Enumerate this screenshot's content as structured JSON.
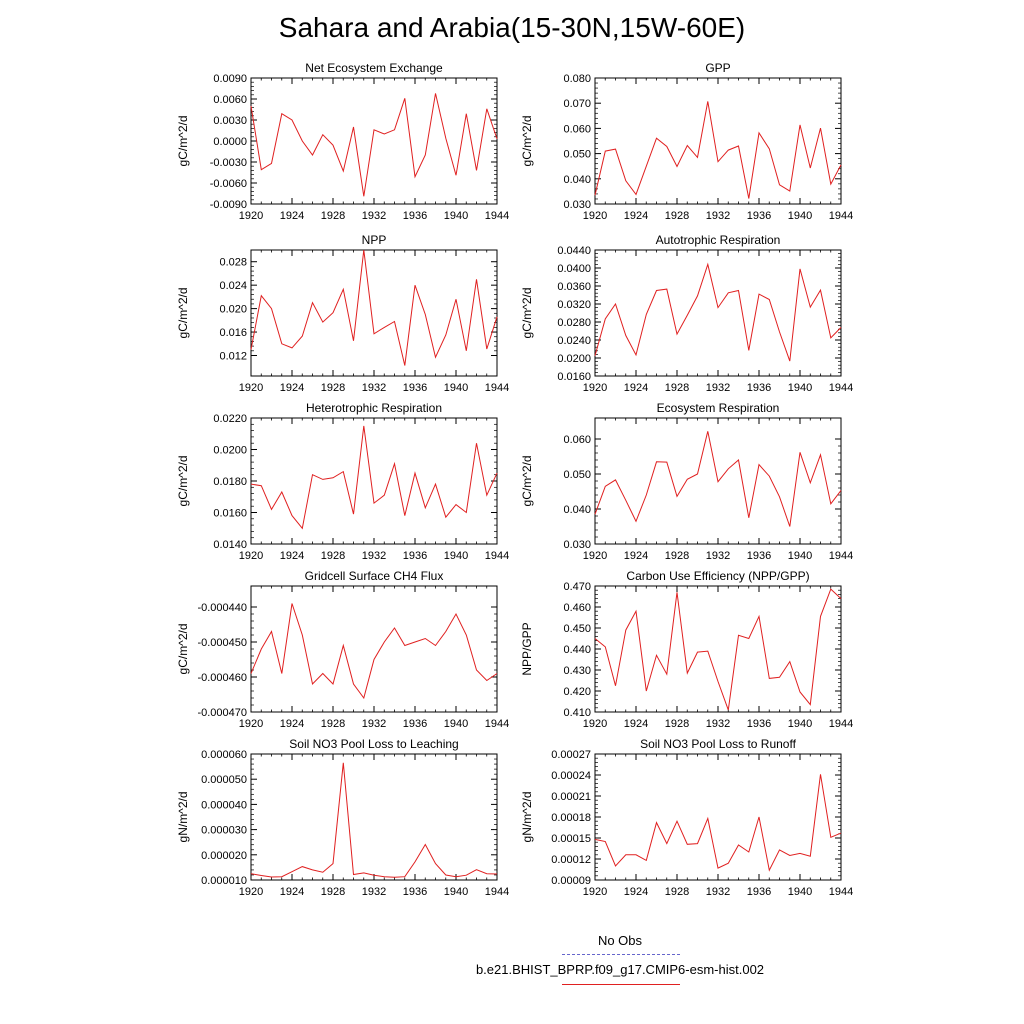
{
  "title": "Sahara and Arabia(15-30N,15W-60E)",
  "legend": {
    "items": [
      {
        "label": "No Obs",
        "color": "#6666cc",
        "dash": true
      },
      {
        "label": "b.e21.BHIST_BPRP.f09_g17.CMIP6-esm-hist.002",
        "color": "#e02020",
        "dash": false
      }
    ]
  },
  "line_color": "#e02020",
  "chart_data": [
    {
      "type": "line",
      "title": "Net Ecosystem Exchange",
      "ylabel": "gC/m^2/d",
      "x": [
        1920,
        1921,
        1922,
        1923,
        1924,
        1925,
        1926,
        1927,
        1928,
        1929,
        1930,
        1931,
        1932,
        1933,
        1934,
        1935,
        1936,
        1937,
        1938,
        1939,
        1940,
        1941,
        1942,
        1943,
        1944
      ],
      "y": [
        0.005,
        -0.0041,
        -0.0032,
        0.0039,
        0.003,
        0.0,
        -0.002,
        0.0009,
        -0.0006,
        -0.0043,
        0.002,
        -0.0079,
        0.0016,
        0.001,
        0.0016,
        0.0061,
        -0.0051,
        -0.002,
        0.0068,
        0.0004,
        -0.0049,
        0.0039,
        -0.0042,
        0.0046,
        0.0003
      ],
      "xlim": [
        1920,
        1944
      ],
      "ylim": [
        -0.009,
        0.009
      ],
      "xticks": [
        1920,
        1924,
        1928,
        1932,
        1936,
        1940,
        1944
      ],
      "yticks": [
        "0.0090",
        "0.0060",
        "0.0030",
        "0.0000",
        "-0.0030",
        "-0.0060",
        "-0.0090"
      ],
      "ytick_values": [
        0.009,
        0.006,
        0.003,
        0.0,
        -0.003,
        -0.006,
        -0.009
      ]
    },
    {
      "type": "line",
      "title": "GPP",
      "ylabel": "gC/m^2/d",
      "x": [
        1920,
        1921,
        1922,
        1923,
        1924,
        1925,
        1926,
        1927,
        1928,
        1929,
        1930,
        1931,
        1932,
        1933,
        1934,
        1935,
        1936,
        1937,
        1938,
        1939,
        1940,
        1941,
        1942,
        1943,
        1944
      ],
      "y": [
        0.0335,
        0.051,
        0.0518,
        0.0392,
        0.0338,
        0.045,
        0.0561,
        0.0528,
        0.0449,
        0.0532,
        0.0485,
        0.0707,
        0.0468,
        0.0514,
        0.053,
        0.0322,
        0.0582,
        0.0519,
        0.0376,
        0.0351,
        0.0614,
        0.0443,
        0.0601,
        0.0379,
        0.0455
      ],
      "xlim": [
        1920,
        1944
      ],
      "ylim": [
        0.03,
        0.08
      ],
      "xticks": [
        1920,
        1924,
        1928,
        1932,
        1936,
        1940,
        1944
      ],
      "yticks": [
        "0.080",
        "0.070",
        "0.060",
        "0.050",
        "0.040",
        "0.030"
      ],
      "ytick_values": [
        0.08,
        0.07,
        0.06,
        0.05,
        0.04,
        0.03
      ]
    },
    {
      "type": "line",
      "title": "NPP",
      "ylabel": "gC/m^2/d",
      "x": [
        1920,
        1921,
        1922,
        1923,
        1924,
        1925,
        1926,
        1927,
        1928,
        1929,
        1930,
        1931,
        1932,
        1933,
        1934,
        1935,
        1936,
        1937,
        1938,
        1939,
        1940,
        1941,
        1942,
        1943,
        1944
      ],
      "y": [
        0.013,
        0.0222,
        0.02,
        0.014,
        0.0133,
        0.0153,
        0.021,
        0.0177,
        0.0193,
        0.0233,
        0.0145,
        0.03,
        0.0157,
        0.0168,
        0.0178,
        0.0103,
        0.024,
        0.019,
        0.0117,
        0.0155,
        0.0216,
        0.0128,
        0.025,
        0.0131,
        0.0186
      ],
      "xlim": [
        1920,
        1944
      ],
      "ylim": [
        0.0085,
        0.03
      ],
      "xticks": [
        1920,
        1924,
        1928,
        1932,
        1936,
        1940,
        1944
      ],
      "yticks": [
        "0.028",
        "0.024",
        "0.020",
        "0.016",
        "0.012"
      ],
      "ytick_values": [
        0.028,
        0.024,
        0.02,
        0.016,
        0.012
      ]
    },
    {
      "type": "line",
      "title": "Autotrophic Respiration",
      "ylabel": "gC/m^2/d",
      "x": [
        1920,
        1921,
        1922,
        1923,
        1924,
        1925,
        1926,
        1927,
        1928,
        1929,
        1930,
        1931,
        1932,
        1933,
        1934,
        1935,
        1936,
        1937,
        1938,
        1939,
        1940,
        1941,
        1942,
        1943,
        1944
      ],
      "y": [
        0.0205,
        0.0287,
        0.032,
        0.025,
        0.0207,
        0.0297,
        0.035,
        0.0353,
        0.0253,
        0.0295,
        0.0338,
        0.0408,
        0.0312,
        0.0345,
        0.035,
        0.0217,
        0.0342,
        0.033,
        0.0258,
        0.0193,
        0.0398,
        0.0313,
        0.0351,
        0.0245,
        0.0268
      ],
      "xlim": [
        1920,
        1944
      ],
      "ylim": [
        0.016,
        0.044
      ],
      "xticks": [
        1920,
        1924,
        1928,
        1932,
        1936,
        1940,
        1944
      ],
      "yticks": [
        "0.0440",
        "0.0400",
        "0.0360",
        "0.0320",
        "0.0280",
        "0.0240",
        "0.0200",
        "0.0160"
      ],
      "ytick_values": [
        0.044,
        0.04,
        0.036,
        0.032,
        0.028,
        0.024,
        0.02,
        0.016
      ]
    },
    {
      "type": "line",
      "title": "Heterotrophic Respiration",
      "ylabel": "gC/m^2/d",
      "x": [
        1920,
        1921,
        1922,
        1923,
        1924,
        1925,
        1926,
        1927,
        1928,
        1929,
        1930,
        1931,
        1932,
        1933,
        1934,
        1935,
        1936,
        1937,
        1938,
        1939,
        1940,
        1941,
        1942,
        1943,
        1944
      ],
      "y": [
        0.0178,
        0.0177,
        0.0162,
        0.0173,
        0.0158,
        0.015,
        0.0184,
        0.0181,
        0.0182,
        0.0186,
        0.0159,
        0.0215,
        0.0166,
        0.0171,
        0.0191,
        0.0158,
        0.0185,
        0.0163,
        0.0178,
        0.0157,
        0.0165,
        0.016,
        0.0204,
        0.0171,
        0.0185
      ],
      "xlim": [
        1920,
        1944
      ],
      "ylim": [
        0.014,
        0.022
      ],
      "xticks": [
        1920,
        1924,
        1928,
        1932,
        1936,
        1940,
        1944
      ],
      "yticks": [
        "0.0220",
        "0.0200",
        "0.0180",
        "0.0160",
        "0.0140"
      ],
      "ytick_values": [
        0.022,
        0.02,
        0.018,
        0.016,
        0.014
      ]
    },
    {
      "type": "line",
      "title": "Ecosystem Respiration",
      "ylabel": "gC/m^2/d",
      "x": [
        1920,
        1921,
        1922,
        1923,
        1924,
        1925,
        1926,
        1927,
        1928,
        1929,
        1930,
        1931,
        1932,
        1933,
        1934,
        1935,
        1936,
        1937,
        1938,
        1939,
        1940,
        1941,
        1942,
        1943,
        1944
      ],
      "y": [
        0.0385,
        0.0465,
        0.0483,
        0.0425,
        0.0365,
        0.044,
        0.0535,
        0.0534,
        0.0436,
        0.0485,
        0.05,
        0.0622,
        0.0478,
        0.0515,
        0.054,
        0.0375,
        0.0527,
        0.0494,
        0.0435,
        0.035,
        0.0562,
        0.0475,
        0.0555,
        0.0415,
        0.0453
      ],
      "xlim": [
        1920,
        1944
      ],
      "ylim": [
        0.03,
        0.066
      ],
      "xticks": [
        1920,
        1924,
        1928,
        1932,
        1936,
        1940,
        1944
      ],
      "yticks": [
        "0.060",
        "0.050",
        "0.040",
        "0.030"
      ],
      "ytick_values": [
        0.06,
        0.05,
        0.04,
        0.03
      ]
    },
    {
      "type": "line",
      "title": "Gridcell Surface CH4 Flux",
      "ylabel": "gC/m^2/d",
      "x": [
        1920,
        1921,
        1922,
        1923,
        1924,
        1925,
        1926,
        1927,
        1928,
        1929,
        1930,
        1931,
        1932,
        1933,
        1934,
        1935,
        1936,
        1937,
        1938,
        1939,
        1940,
        1941,
        1942,
        1943,
        1944
      ],
      "y": [
        -0.000459,
        -0.000452,
        -0.000447,
        -0.000459,
        -0.000439,
        -0.000448,
        -0.000462,
        -0.000459,
        -0.000462,
        -0.000451,
        -0.000462,
        -0.000466,
        -0.000455,
        -0.00045,
        -0.000446,
        -0.000451,
        -0.00045,
        -0.000449,
        -0.000451,
        -0.000447,
        -0.000442,
        -0.000448,
        -0.000458,
        -0.000461,
        -0.000459
      ],
      "xlim": [
        1920,
        1944
      ],
      "ylim": [
        -0.00047,
        -0.000434
      ],
      "xticks": [
        1920,
        1924,
        1928,
        1932,
        1936,
        1940,
        1944
      ],
      "yticks": [
        "-0.000440",
        "-0.000450",
        "-0.000460",
        "-0.000470"
      ],
      "ytick_values": [
        -0.00044,
        -0.00045,
        -0.00046,
        -0.00047
      ]
    },
    {
      "type": "line",
      "title": "Carbon Use Efficiency (NPP/GPP)",
      "ylabel": "NPP/GPP",
      "x": [
        1920,
        1921,
        1922,
        1923,
        1924,
        1925,
        1926,
        1927,
        1928,
        1929,
        1930,
        1931,
        1932,
        1933,
        1934,
        1935,
        1936,
        1937,
        1938,
        1939,
        1940,
        1941,
        1942,
        1943,
        1944
      ],
      "y": [
        0.445,
        0.441,
        0.4225,
        0.449,
        0.458,
        0.42,
        0.437,
        0.428,
        0.467,
        0.4285,
        0.4385,
        0.439,
        0.4245,
        0.411,
        0.4465,
        0.445,
        0.4555,
        0.426,
        0.4265,
        0.434,
        0.4195,
        0.4135,
        0.4555,
        0.4685,
        0.464
      ],
      "xlim": [
        1920,
        1944
      ],
      "ylim": [
        0.41,
        0.47
      ],
      "xticks": [
        1920,
        1924,
        1928,
        1932,
        1936,
        1940,
        1944
      ],
      "yticks": [
        "0.470",
        "0.460",
        "0.450",
        "0.440",
        "0.430",
        "0.420",
        "0.410"
      ],
      "ytick_values": [
        0.47,
        0.46,
        0.45,
        0.44,
        0.43,
        0.42,
        0.41
      ]
    },
    {
      "type": "line",
      "title": "Soil NO3 Pool Loss to Leaching",
      "ylabel": "gN/m^2/d",
      "x": [
        1920,
        1921,
        1922,
        1923,
        1924,
        1925,
        1926,
        1927,
        1928,
        1929,
        1930,
        1931,
        1932,
        1933,
        1934,
        1935,
        1936,
        1937,
        1938,
        1939,
        1940,
        1941,
        1942,
        1943,
        1944
      ],
      "y": [
        1.25e-05,
        1.18e-05,
        1.12e-05,
        1.13e-05,
        1.33e-05,
        1.53e-05,
        1.4e-05,
        1.31e-05,
        1.65e-05,
        5.65e-05,
        1.22e-05,
        1.28e-05,
        1.19e-05,
        1.13e-05,
        1.11e-05,
        1.13e-05,
        1.72e-05,
        2.41e-05,
        1.65e-05,
        1.2e-05,
        1.13e-05,
        1.19e-05,
        1.41e-05,
        1.25e-05,
        1.24e-05
      ],
      "xlim": [
        1920,
        1944
      ],
      "ylim": [
        1e-05,
        6e-05
      ],
      "xticks": [
        1920,
        1924,
        1928,
        1932,
        1936,
        1940,
        1944
      ],
      "yticks": [
        "0.000060",
        "0.000050",
        "0.000040",
        "0.000030",
        "0.000020",
        "0.000010"
      ],
      "ytick_values": [
        6e-05,
        5e-05,
        4e-05,
        3e-05,
        2e-05,
        1e-05
      ]
    },
    {
      "type": "line",
      "title": "Soil NO3 Pool Loss to Runoff",
      "ylabel": "gN/m^2/d",
      "x": [
        1920,
        1921,
        1922,
        1923,
        1924,
        1925,
        1926,
        1927,
        1928,
        1929,
        1930,
        1931,
        1932,
        1933,
        1934,
        1935,
        1936,
        1937,
        1938,
        1939,
        1940,
        1941,
        1942,
        1943,
        1944
      ],
      "y": [
        0.000148,
        0.000145,
        0.00011,
        0.000126,
        0.000126,
        0.000118,
        0.000172,
        0.000142,
        0.000174,
        0.000141,
        0.000142,
        0.000178,
        0.000107,
        0.000114,
        0.00014,
        0.00013,
        0.00018,
        0.000104,
        0.000133,
        0.000125,
        0.000128,
        0.000124,
        0.000241,
        0.000151,
        0.000157
      ],
      "xlim": [
        1920,
        1944
      ],
      "ylim": [
        9e-05,
        0.00027
      ],
      "xticks": [
        1920,
        1924,
        1928,
        1932,
        1936,
        1940,
        1944
      ],
      "yticks": [
        "0.00027",
        "0.00024",
        "0.00021",
        "0.00018",
        "0.00015",
        "0.00012",
        "0.00009"
      ],
      "ytick_values": [
        0.00027,
        0.00024,
        0.00021,
        0.00018,
        0.00015,
        0.00012,
        9e-05
      ]
    }
  ]
}
